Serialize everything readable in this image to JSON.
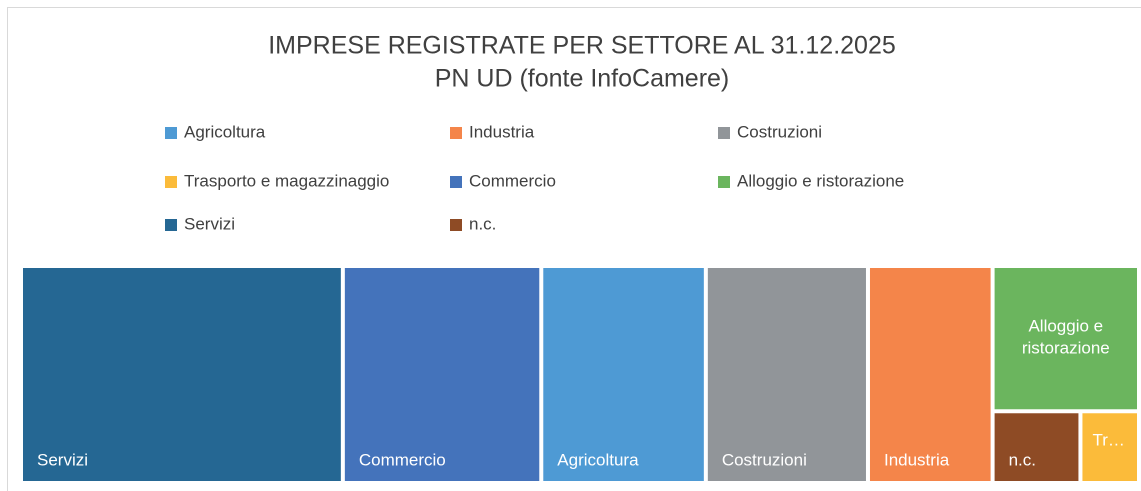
{
  "chart_data": {
    "type": "treemap",
    "title": "IMPRESE REGISTRATE PER SETTORE AL 31.12.2025",
    "subtitle": "PN UD (fonte InfoCamere)",
    "categories": [
      "Agricoltura",
      "Industria",
      "Costruzioni",
      "Trasporto e magazzinaggio",
      "Commercio",
      "Alloggio e ristorazione",
      "Servizi",
      "n.c."
    ],
    "values": [
      13600,
      10300,
      13400,
      1600,
      16400,
      8100,
      26600,
      2400
    ],
    "colors": [
      "#4e9ad4",
      "#f4854a",
      "#919599",
      "#fbbb3a",
      "#4473bb",
      "#6bb55e",
      "#256793",
      "#8e4b25"
    ],
    "legend": "top"
  }
}
